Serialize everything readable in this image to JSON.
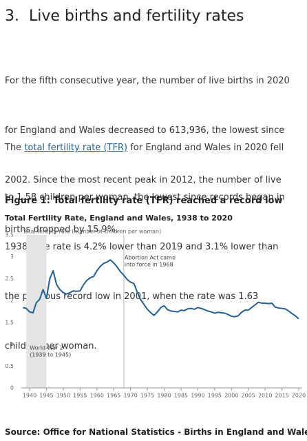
{
  "heading": "3.  Live births and fertility rates",
  "paragraph_1": [
    "For the fifth consecutive year, the number of live births in 2020",
    "for England and Wales decreased to 613,936, the lowest since",
    "2002. Since the most recent peak in 2012, the number of live",
    "births dropped by 15.9%."
  ],
  "paragraph_2": {
    "before": "The ",
    "link": "total fertility rate (TFR)",
    "after": " for England and Wales in 2020 fell",
    "lines": [
      "to 1.58 children per woman, the lowest since records began in",
      "1938. The rate is 4.2% lower than 2019 and 3.1% lower than",
      "the previous record low in 2001, when the rate was 1.63",
      "children per woman."
    ]
  },
  "figure_title": "Figure 1: Total fertility rate (TFR) reached a record low",
  "chart_data": {
    "type": "line",
    "title": "Total Fertility Rate, England and Wales, 1938 to 2020",
    "y_label": "Total fertility rate (number of children per woman)",
    "x": [
      1938,
      1939,
      1940,
      1941,
      1942,
      1943,
      1944,
      1945,
      1946,
      1947,
      1948,
      1949,
      1950,
      1951,
      1952,
      1953,
      1954,
      1955,
      1956,
      1957,
      1958,
      1959,
      1960,
      1961,
      1962,
      1963,
      1964,
      1965,
      1966,
      1967,
      1968,
      1969,
      1970,
      1971,
      1972,
      1973,
      1974,
      1975,
      1976,
      1977,
      1978,
      1979,
      1980,
      1981,
      1982,
      1983,
      1984,
      1985,
      1986,
      1987,
      1988,
      1989,
      1990,
      1991,
      1992,
      1993,
      1994,
      1995,
      1996,
      1997,
      1998,
      1999,
      2000,
      2001,
      2002,
      2003,
      2004,
      2005,
      2006,
      2007,
      2008,
      2009,
      2010,
      2011,
      2012,
      2013,
      2014,
      2015,
      2016,
      2017,
      2018,
      2019,
      2020
    ],
    "values": [
      1.84,
      1.82,
      1.74,
      1.72,
      1.95,
      2.03,
      2.25,
      2.05,
      2.5,
      2.68,
      2.37,
      2.25,
      2.18,
      2.15,
      2.18,
      2.22,
      2.21,
      2.22,
      2.36,
      2.46,
      2.52,
      2.55,
      2.68,
      2.78,
      2.85,
      2.88,
      2.93,
      2.86,
      2.77,
      2.66,
      2.58,
      2.48,
      2.42,
      2.39,
      2.19,
      2.02,
      1.91,
      1.8,
      1.72,
      1.66,
      1.74,
      1.84,
      1.88,
      1.79,
      1.76,
      1.75,
      1.74,
      1.78,
      1.77,
      1.81,
      1.82,
      1.8,
      1.84,
      1.82,
      1.79,
      1.76,
      1.74,
      1.71,
      1.73,
      1.72,
      1.71,
      1.68,
      1.64,
      1.63,
      1.65,
      1.73,
      1.78,
      1.78,
      1.84,
      1.9,
      1.96,
      1.94,
      1.94,
      1.93,
      1.94,
      1.85,
      1.83,
      1.82,
      1.81,
      1.76,
      1.7,
      1.65,
      1.58
    ],
    "color": "#206095",
    "xlim": [
      1937.5,
      2021
    ],
    "xticks": [
      1940,
      1945,
      1950,
      1955,
      1960,
      1965,
      1970,
      1975,
      1980,
      1985,
      1990,
      1995,
      2000,
      2005,
      2010,
      2015,
      2020
    ],
    "ylim": [
      0,
      3.5
    ],
    "yticks": [
      0,
      0.5,
      1,
      1.5,
      2,
      2.5,
      3,
      3.5
    ],
    "shaded": {
      "x": [
        1939,
        1945
      ],
      "lines": [
        "World War 2",
        "(1939 to 1945)"
      ]
    },
    "marker_line": {
      "x": 1968,
      "lines": [
        "Abortion Act came",
        "into force in 1968"
      ]
    }
  },
  "source": "Source: Office for National Statistics - Births in England and Wales"
}
